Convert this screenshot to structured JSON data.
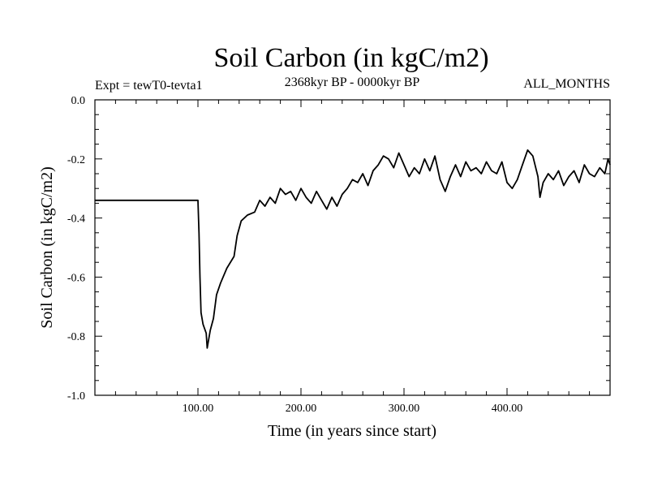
{
  "chart_data": {
    "type": "line",
    "title": "Soil Carbon (in kgC/m2)",
    "subtitle_left": "Expt = tewT0-tevta1",
    "subtitle_center": "2368kyr BP - 0000kyr BP",
    "subtitle_right": "ALL_MONTHS",
    "xlabel": "Time (in years since start)",
    "ylabel": "Soil Carbon (in kgC/m2)",
    "xlim": [
      0,
      500
    ],
    "ylim": [
      -1.0,
      0.0
    ],
    "x_ticks": [
      100,
      200,
      300,
      400
    ],
    "x_tick_labels": [
      "100.00",
      "200.00",
      "300.00",
      "400.00"
    ],
    "y_ticks": [
      0.0,
      -0.2,
      -0.4,
      -0.6,
      -0.8,
      -1.0
    ],
    "y_tick_labels": [
      "0.0",
      "-0.2",
      "-0.4",
      "-0.6",
      "-0.8",
      "-1.0"
    ],
    "x_minor_step": 20,
    "y_minor_step": 0.05,
    "grid": false,
    "series": [
      {
        "name": "Soil Carbon",
        "x": [
          0,
          100,
          101,
          102,
          103,
          105,
          108,
          109,
          112,
          115,
          118,
          122,
          128,
          135,
          138,
          142,
          148,
          155,
          160,
          165,
          170,
          175,
          180,
          185,
          190,
          195,
          200,
          205,
          210,
          215,
          220,
          225,
          230,
          235,
          240,
          245,
          250,
          255,
          260,
          265,
          270,
          275,
          280,
          285,
          290,
          295,
          300,
          305,
          310,
          315,
          320,
          325,
          330,
          335,
          340,
          345,
          350,
          355,
          360,
          365,
          370,
          375,
          380,
          385,
          390,
          395,
          400,
          405,
          410,
          415,
          420,
          425,
          430,
          432,
          435,
          440,
          445,
          450,
          455,
          460,
          465,
          470,
          475,
          480,
          485,
          490,
          495,
          498,
          500
        ],
        "values": [
          -0.34,
          -0.34,
          -0.45,
          -0.6,
          -0.72,
          -0.76,
          -0.79,
          -0.84,
          -0.78,
          -0.74,
          -0.66,
          -0.62,
          -0.57,
          -0.53,
          -0.46,
          -0.41,
          -0.39,
          -0.38,
          -0.34,
          -0.36,
          -0.33,
          -0.35,
          -0.3,
          -0.32,
          -0.31,
          -0.34,
          -0.3,
          -0.33,
          -0.35,
          -0.31,
          -0.34,
          -0.37,
          -0.33,
          -0.36,
          -0.32,
          -0.3,
          -0.27,
          -0.28,
          -0.25,
          -0.29,
          -0.24,
          -0.22,
          -0.19,
          -0.2,
          -0.23,
          -0.18,
          -0.22,
          -0.26,
          -0.23,
          -0.25,
          -0.2,
          -0.24,
          -0.19,
          -0.27,
          -0.31,
          -0.26,
          -0.22,
          -0.26,
          -0.21,
          -0.24,
          -0.23,
          -0.25,
          -0.21,
          -0.24,
          -0.25,
          -0.21,
          -0.28,
          -0.3,
          -0.27,
          -0.22,
          -0.17,
          -0.19,
          -0.26,
          -0.33,
          -0.28,
          -0.25,
          -0.27,
          -0.24,
          -0.29,
          -0.26,
          -0.24,
          -0.28,
          -0.22,
          -0.25,
          -0.26,
          -0.23,
          -0.25,
          -0.2,
          -0.22
        ]
      }
    ]
  }
}
